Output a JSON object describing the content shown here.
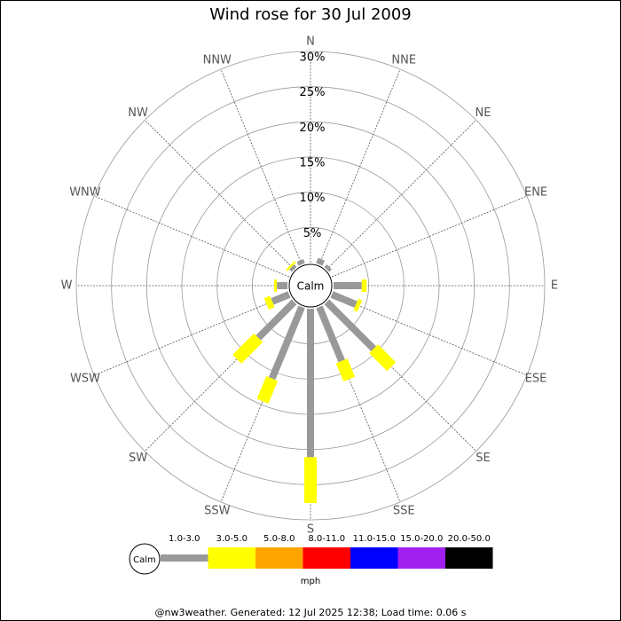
{
  "chart_data": {
    "type": "wind-rose",
    "title": "Wind rose for 30 Jul 2009",
    "directions": [
      "N",
      "NNE",
      "NE",
      "ENE",
      "E",
      "ESE",
      "SE",
      "SSE",
      "S",
      "SSW",
      "SW",
      "WSW",
      "W",
      "WNW",
      "NW",
      "NNW"
    ],
    "series": [
      {
        "name": "1.0-3.0",
        "color": "#999999",
        "values": [
          0,
          0.8,
          0.5,
          0,
          4.0,
          3.7,
          9.4,
          8.3,
          21.1,
          11,
          7.2,
          2.6,
          1.5,
          0,
          0.5,
          0.6
        ]
      },
      {
        "name": "3.0-5.0",
        "color": "#ffff00",
        "values": [
          0,
          0,
          0,
          0,
          0.7,
          0.6,
          3.6,
          2.8,
          6.5,
          3.5,
          4.3,
          0.9,
          0.4,
          0,
          0.3,
          0
        ]
      },
      {
        "name": "5.0-8.0",
        "color": "#ffa500",
        "values": [
          0,
          0,
          0,
          0,
          0,
          0,
          0,
          0,
          0,
          0,
          0,
          0,
          0,
          0,
          0,
          0
        ]
      },
      {
        "name": "8.0-11.0",
        "color": "#ff0000",
        "values": [
          0,
          0,
          0,
          0,
          0,
          0,
          0,
          0,
          0,
          0,
          0,
          0,
          0,
          0,
          0,
          0
        ]
      },
      {
        "name": "11.0-15.0",
        "color": "#0000ff",
        "values": [
          0,
          0,
          0,
          0,
          0,
          0,
          0,
          0,
          0,
          0,
          0,
          0,
          0,
          0,
          0,
          0
        ]
      },
      {
        "name": "15.0-20.0",
        "color": "#a020f0",
        "values": [
          0,
          0,
          0,
          0,
          0,
          0,
          0,
          0,
          0,
          0,
          0,
          0,
          0,
          0,
          0,
          0
        ]
      },
      {
        "name": "20.0-50.0",
        "color": "#000000",
        "values": [
          0,
          0,
          0,
          0,
          0,
          0,
          0,
          0,
          0,
          0,
          0,
          0,
          0,
          0,
          0,
          0
        ]
      }
    ],
    "rlim": [
      0,
      30
    ],
    "rticks": [
      {
        "value": 5,
        "label": "5%"
      },
      {
        "value": 10,
        "label": "10%"
      },
      {
        "value": 15,
        "label": "15%"
      },
      {
        "value": 20,
        "label": "20%"
      },
      {
        "value": 25,
        "label": "25%"
      },
      {
        "value": 30,
        "label": "30%"
      }
    ],
    "calm_label": "Calm",
    "units": "mph",
    "footer": "@nw3weather. Generated: 12 Jul 2025 12:38; Load time: 0.06 s"
  }
}
